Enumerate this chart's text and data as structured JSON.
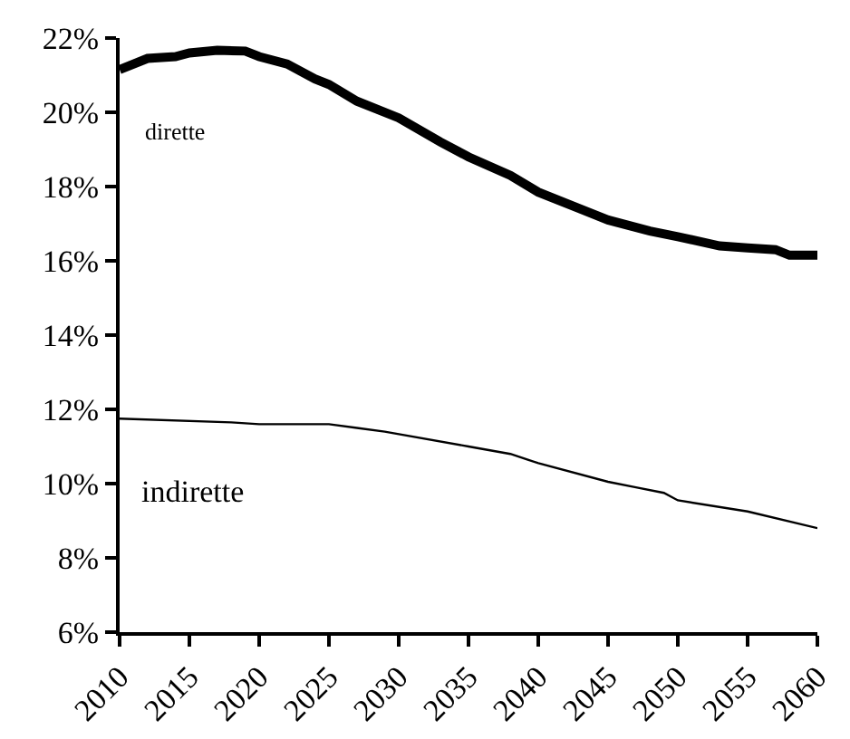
{
  "chart_data": {
    "type": "line",
    "xlim": [
      2010,
      2060
    ],
    "xticks": [
      2010,
      2015,
      2020,
      2025,
      2030,
      2035,
      2040,
      2045,
      2050,
      2055,
      2060
    ],
    "ylim": [
      6,
      22
    ],
    "yticks": [
      {
        "value": 6,
        "label": "6%"
      },
      {
        "value": 8,
        "label": "8%"
      },
      {
        "value": 10,
        "label": "10%"
      },
      {
        "value": 12,
        "label": "12%"
      },
      {
        "value": 14,
        "label": "14%"
      },
      {
        "value": 16,
        "label": "16%"
      },
      {
        "value": 18,
        "label": "18%"
      },
      {
        "value": 20,
        "label": "20%"
      },
      {
        "value": 22,
        "label": "22%"
      }
    ],
    "grid": false,
    "legend": false,
    "marker": "none",
    "line_style": "solid",
    "series": [
      {
        "name": "dirette",
        "color": "#000000",
        "x": [
          2010,
          2012,
          2014,
          2015,
          2017,
          2019,
          2020,
          2022,
          2024,
          2025,
          2027,
          2030,
          2033,
          2035,
          2038,
          2040,
          2043,
          2045,
          2048,
          2050,
          2053,
          2055,
          2057,
          2058,
          2060
        ],
        "values": [
          21.15,
          21.45,
          21.5,
          21.6,
          21.67,
          21.65,
          21.5,
          21.3,
          20.9,
          20.75,
          20.3,
          19.85,
          19.2,
          18.8,
          18.3,
          17.85,
          17.4,
          17.1,
          16.8,
          16.65,
          16.4,
          16.35,
          16.3,
          16.15,
          16.15
        ]
      },
      {
        "name": "indirette",
        "color": "#000000",
        "x": [
          2010,
          2018,
          2020,
          2025,
          2027,
          2029,
          2035,
          2038,
          2040,
          2045,
          2047,
          2049,
          2050,
          2055,
          2060
        ],
        "values": [
          11.75,
          11.65,
          11.6,
          11.6,
          11.5,
          11.4,
          11.0,
          10.8,
          10.55,
          10.05,
          9.9,
          9.75,
          9.55,
          9.25,
          8.8
        ]
      }
    ]
  }
}
